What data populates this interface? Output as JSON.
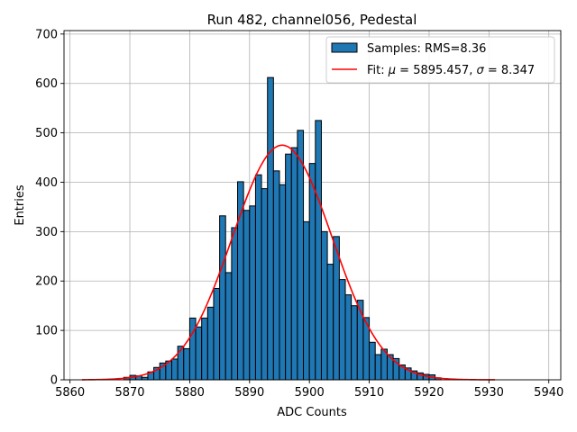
{
  "chart_data": {
    "type": "bar",
    "title": "Run 482, channel056, Pedestal",
    "xlabel": "ADC Counts",
    "ylabel": "Entries",
    "xlim": [
      5859,
      5942
    ],
    "ylim": [
      0,
      707
    ],
    "xticks": [
      5860,
      5870,
      5880,
      5890,
      5900,
      5910,
      5920,
      5930,
      5940
    ],
    "yticks": [
      0,
      100,
      200,
      300,
      400,
      500,
      600,
      700
    ],
    "grid": true,
    "legend_position": "top-right",
    "bin_width": 1,
    "histogram": {
      "name": "Samples: RMS=8.36",
      "color": "#1f77b4",
      "edgecolor": "#000000",
      "bin_starts": [
        5869,
        5870,
        5871,
        5872,
        5873,
        5874,
        5875,
        5876,
        5877,
        5878,
        5879,
        5880,
        5881,
        5882,
        5883,
        5884,
        5885,
        5886,
        5887,
        5888,
        5889,
        5890,
        5891,
        5892,
        5893,
        5894,
        5895,
        5896,
        5897,
        5898,
        5899,
        5900,
        5901,
        5902,
        5903,
        5904,
        5905,
        5906,
        5907,
        5908,
        5909,
        5910,
        5911,
        5912,
        5913,
        5914,
        5915,
        5916,
        5917,
        5918,
        5919,
        5920,
        5921
      ],
      "values": [
        5,
        9,
        8,
        5,
        16,
        25,
        34,
        38,
        42,
        68,
        63,
        125,
        107,
        125,
        147,
        185,
        332,
        217,
        308,
        401,
        343,
        352,
        415,
        387,
        612,
        423,
        395,
        457,
        470,
        505,
        320,
        438,
        525,
        300,
        234,
        290,
        203,
        172,
        150,
        161,
        126,
        76,
        51,
        62,
        51,
        43,
        30,
        24,
        18,
        14,
        11,
        10,
        4
      ]
    },
    "fit": {
      "name": "Fit: μ = 5895.457, σ = 8.347",
      "color": "#ff0000",
      "mu": 5895.457,
      "sigma": 8.347,
      "amplitude": 475,
      "x_range": [
        5862,
        5931
      ]
    },
    "legend": [
      {
        "label": "Samples: RMS=8.36",
        "kind": "patch"
      },
      {
        "label_prefix": "Fit: ",
        "mu_symbol": "μ",
        "mu_text": " = 5895.457, ",
        "sigma_symbol": "σ",
        "sigma_text": " = 8.347",
        "kind": "line"
      }
    ]
  }
}
